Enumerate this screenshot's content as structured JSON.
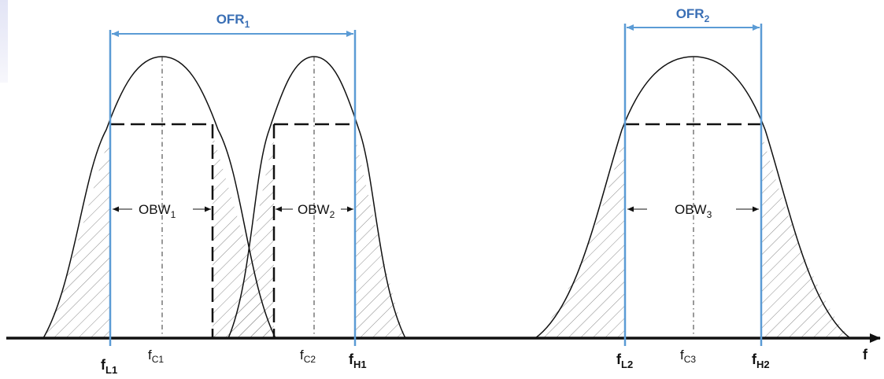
{
  "frequency_axis_label": "f",
  "ofr": [
    {
      "base": "OFR",
      "sub": "1"
    },
    {
      "base": "OFR",
      "sub": "2"
    }
  ],
  "obw": [
    {
      "base": "OBW",
      "sub": "1"
    },
    {
      "base": "OBW",
      "sub": "2"
    },
    {
      "base": "OBW",
      "sub": "3"
    }
  ],
  "center_freqs": [
    {
      "base": "f",
      "sub": "C1"
    },
    {
      "base": "f",
      "sub": "C2"
    },
    {
      "base": "f",
      "sub": "C3"
    }
  ],
  "edge_freqs": [
    {
      "base": "f",
      "sub": "L1"
    },
    {
      "base": "f",
      "sub": "H1"
    },
    {
      "base": "f",
      "sub": "L2"
    },
    {
      "base": "f",
      "sub": "H2"
    }
  ],
  "colors": {
    "boundary_blue": "#5b9bd5",
    "label_blue": "#3a6fb5",
    "curve": "#111111"
  }
}
